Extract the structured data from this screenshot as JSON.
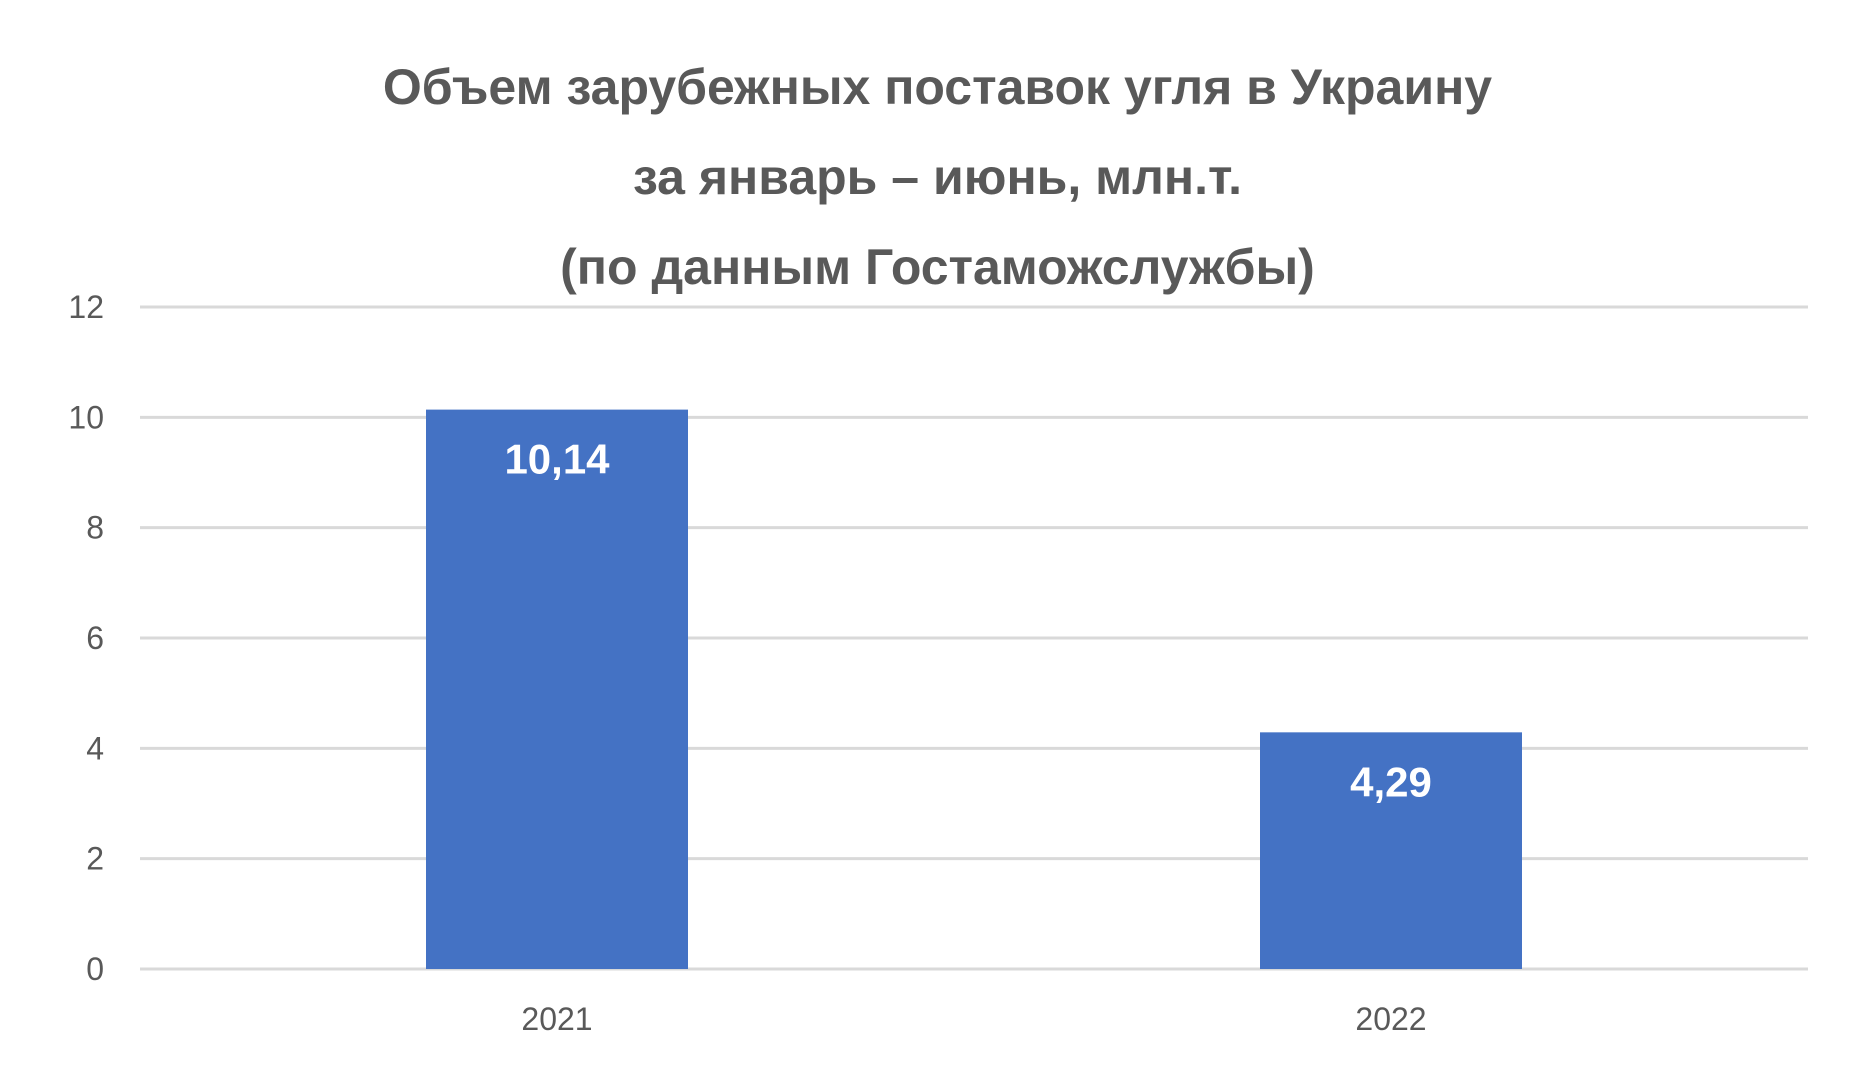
{
  "chart_data": {
    "type": "bar",
    "title_lines": [
      "Объем зарубежных поставок угля в Украину",
      "за январь – июнь, млн.т.",
      "(по данным Гостаможслужбы)"
    ],
    "categories": [
      "2021",
      "2022"
    ],
    "values": [
      10.14,
      4.29
    ],
    "data_labels": [
      "10,14",
      "4,29"
    ],
    "xlabel": "",
    "ylabel": "",
    "ylim": [
      0,
      12
    ],
    "yticks": [
      0,
      2,
      4,
      6,
      8,
      10,
      12
    ],
    "grid": true,
    "legend": "none",
    "colors": {
      "bar": "#4472C4",
      "grid": "#D9D9D9",
      "axis_text": "#595959",
      "title": "#595959",
      "data_label": "#FFFFFF"
    }
  }
}
